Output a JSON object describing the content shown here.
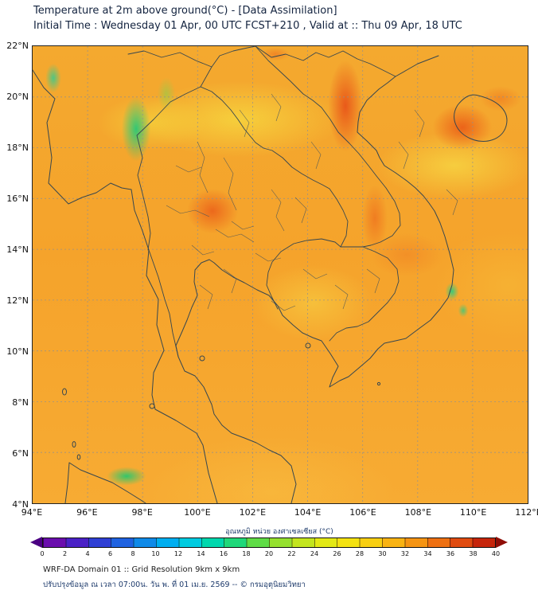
{
  "header": {
    "title_line1": "Temperature at 2m above ground(°C) - [Data Assimilation]",
    "title_line2": "Initial Time : Wednesday 01 Apr, 00 UTC FCST+210 , Valid at :: Thu 09 Apr, 18 UTC"
  },
  "map": {
    "y_tick_labels": [
      "22°N",
      "20°N",
      "18°N",
      "16°N",
      "14°N",
      "12°N",
      "10°N",
      "8°N",
      "6°N",
      "4°N"
    ],
    "x_tick_labels": [
      "94°E",
      "96°E",
      "98°E",
      "100°E",
      "102°E",
      "104°E",
      "106°E",
      "108°E",
      "110°E",
      "112°E"
    ],
    "lat_range": [
      4,
      22
    ],
    "lon_range": [
      94,
      112
    ],
    "field_colors": {
      "base_orange": "#f5a32b",
      "warm_yellow": "#f4de42",
      "hot_red": "#e04b10",
      "cool_green": "#28c878"
    }
  },
  "colorbar": {
    "label": "อุณหภูมิ หน่วย องศาเซลเซียส (°C)",
    "tick_labels": [
      "0",
      "2",
      "4",
      "6",
      "8",
      "10",
      "12",
      "14",
      "16",
      "18",
      "20",
      "22",
      "24",
      "26",
      "28",
      "30",
      "32",
      "34",
      "36",
      "38",
      "40"
    ],
    "value_range": [
      0,
      40
    ],
    "segment_colors": [
      "#6a0dad",
      "#4a21c6",
      "#2f3fd4",
      "#1f62e0",
      "#0f8ae8",
      "#00aef0",
      "#00cbe0",
      "#00d7ad",
      "#1fd87a",
      "#5fdc46",
      "#95e02e",
      "#c3e51e",
      "#e3e915",
      "#f4e211",
      "#f8cf12",
      "#f9b313",
      "#f59413",
      "#ee7012",
      "#e04b10",
      "#c6250b"
    ],
    "under_color": "#4b0082",
    "over_color": "#8f0d06"
  },
  "footer": {
    "line1": "WRF-DA Domain 01 :: Grid Resolution 9km x 9km",
    "line2": "ปรับปรุงข้อมูล ณ เวลา 07:00น. วัน พ. ที่ 01 เม.ย. 2569 -- © กรมอุตุนิยมวิทยา"
  }
}
